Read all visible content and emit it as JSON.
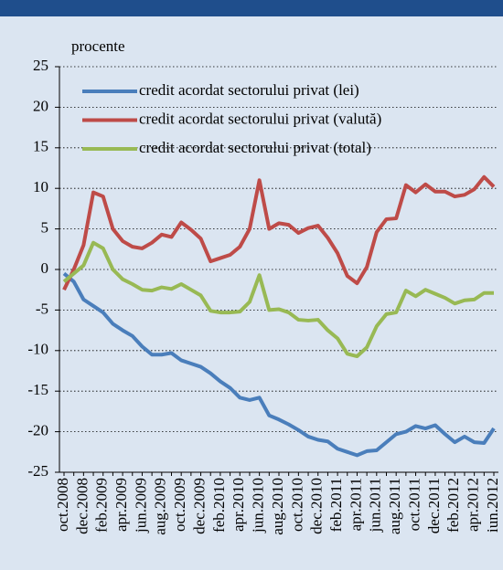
{
  "chart_data": {
    "type": "line",
    "y_axis_label": "procente",
    "categories": [
      "oct.2008",
      null,
      "dec.2008",
      null,
      "feb.2009",
      null,
      "apr.2009",
      null,
      "jun.2009",
      null,
      "aug.2009",
      null,
      "oct.2009",
      null,
      "dec.2009",
      null,
      "feb.2010",
      null,
      "apr.2010",
      null,
      "jun.2010",
      null,
      "aug.2010",
      null,
      "oct.2010",
      null,
      "dec.2010",
      null,
      "feb.2011",
      null,
      "apr.2011",
      null,
      "jun.2011",
      null,
      "aug.2011",
      null,
      "oct.2011",
      null,
      "dec.2011",
      null,
      "feb.2012",
      null,
      "apr.2012",
      null,
      "iun.2012"
    ],
    "series": [
      {
        "name": "credit acordat sectorului privat (lei)",
        "color": "#4a7ebb",
        "values": [
          -0.5,
          -1.5,
          -3.7,
          -4.5,
          -5.3,
          -6.7,
          -7.5,
          -8.2,
          -9.5,
          -10.5,
          -10.5,
          -10.3,
          -11.2,
          -11.6,
          -12,
          -12.8,
          -13.8,
          -14.6,
          -15.8,
          -16.1,
          -15.8,
          -18,
          -18.5,
          -19.1,
          -19.8,
          -20.6,
          -21,
          -21.2,
          -22.1,
          -22.5,
          -22.9,
          -22.4,
          -22.3,
          -21.3,
          -20.3,
          -20,
          -19.3,
          -19.6,
          -19.2,
          -20.3,
          -21.3,
          -20.6,
          -21.3,
          -21.4,
          -19.6
        ]
      },
      {
        "name": "credit acordat sectorului privat (valută)",
        "color": "#be4b48",
        "values": [
          -2.5,
          0,
          3,
          9.5,
          9,
          5,
          3.5,
          2.8,
          2.6,
          3.3,
          4.3,
          4,
          5.8,
          4.9,
          3.8,
          1,
          1.4,
          1.8,
          2.8,
          5,
          11,
          5,
          5.7,
          5.5,
          4.5,
          5.1,
          5.4,
          3.9,
          2,
          -0.8,
          -1.7,
          0.3,
          4.6,
          6.2,
          6.3,
          10.4,
          9.5,
          10.5,
          9.6,
          9.6,
          9,
          9.2,
          9.9,
          11.4,
          10.2
        ]
      },
      {
        "name": "credit acordat sectorului privat (total)",
        "color": "#98b954",
        "values": [
          -1.5,
          -0.5,
          0.5,
          3.3,
          2.6,
          0,
          -1.2,
          -1.8,
          -2.5,
          -2.6,
          -2.2,
          -2.4,
          -1.8,
          -2.5,
          -3.2,
          -5.1,
          -5.3,
          -5.3,
          -5.2,
          -4,
          -0.7,
          -5,
          -4.9,
          -5.3,
          -6.2,
          -6.3,
          -6.2,
          -7.5,
          -8.5,
          -10.4,
          -10.7,
          -9.6,
          -7,
          -5.5,
          -5.3,
          -2.6,
          -3.3,
          -2.5,
          -3,
          -3.5,
          -4.2,
          -3.8,
          -3.7,
          -2.9,
          -2.9
        ]
      }
    ],
    "ylim": [
      -25,
      25
    ],
    "yticks": [
      -25,
      -20,
      -15,
      -10,
      -5,
      0,
      5,
      10,
      15,
      20,
      25
    ],
    "grid": true,
    "legend": "top-left"
  }
}
